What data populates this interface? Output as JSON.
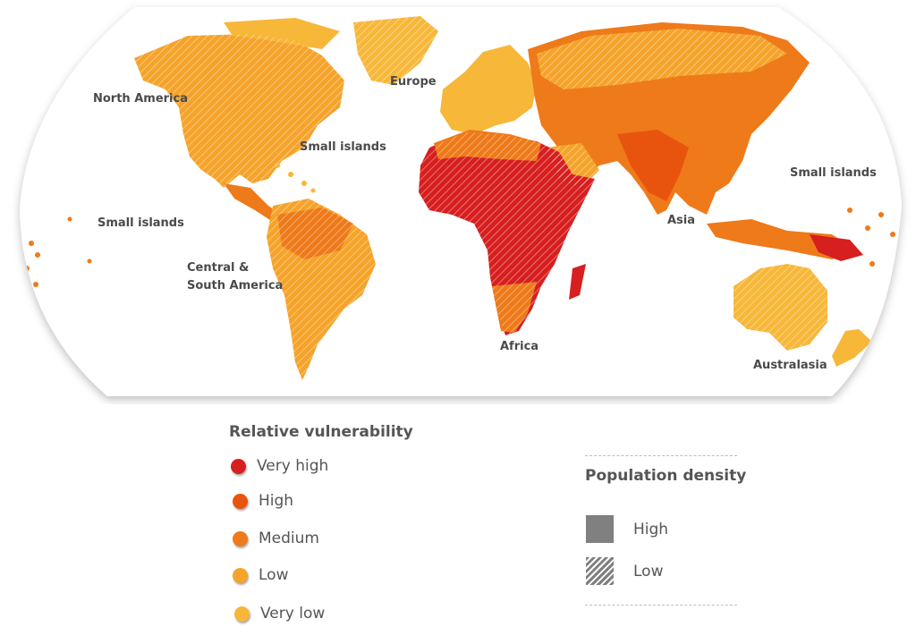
{
  "colors": {
    "very_high": "#d71f1f",
    "high": "#e8540d",
    "medium": "#ee7a1a",
    "low": "#f5a32a",
    "very_low": "#f7b739",
    "ocean": "#ffffff",
    "density_high": "#808080"
  },
  "map": {
    "regions": [
      {
        "label": "North America",
        "vulnerability": "low"
      },
      {
        "label": "Europe",
        "vulnerability": "very_low"
      },
      {
        "label": "Small islands",
        "vulnerability": "low"
      },
      {
        "label": "Small islands",
        "vulnerability": "medium"
      },
      {
        "label": "Small islands",
        "vulnerability": "medium"
      },
      {
        "label": "Central &",
        "label2": "South America",
        "vulnerability": "low"
      },
      {
        "label": "Africa",
        "vulnerability": "very_high"
      },
      {
        "label": "Asia",
        "vulnerability": "high"
      },
      {
        "label": "Australasia",
        "vulnerability": "very_low"
      }
    ]
  },
  "legend": {
    "vulnerability": {
      "title": "Relative vulnerability",
      "items": [
        {
          "label": "Very high",
          "color": "#d71f1f"
        },
        {
          "label": "High",
          "color": "#e8540d"
        },
        {
          "label": "Medium",
          "color": "#ee7a1a"
        },
        {
          "label": "Low",
          "color": "#f5a32a"
        },
        {
          "label": "Very low",
          "color": "#f7b739"
        }
      ]
    },
    "density": {
      "title": "Population density",
      "items": [
        {
          "label": "High",
          "pattern": "solid"
        },
        {
          "label": "Low",
          "pattern": "hatched"
        }
      ]
    }
  }
}
